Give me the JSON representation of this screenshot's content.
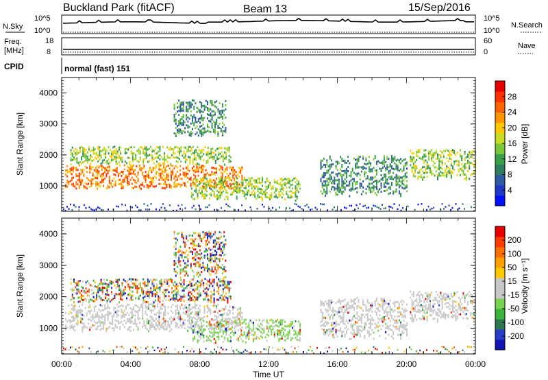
{
  "header": {
    "site": "Buckland Park (fitACF)",
    "beam": "Beam 13",
    "date": "15/Sep/2016"
  },
  "status_panels": {
    "nsky_label": "N.Sky",
    "nsky_ticks": [
      "10^5",
      "10^0"
    ],
    "nsearch_label": "N.Search",
    "nsearch_ticks": [
      "10^5",
      "10^0"
    ],
    "freq_label_line1": "Freq.",
    "freq_label_line2": "[MHz]",
    "freq_ticks": [
      "18",
      "8"
    ],
    "nave_label": "Nave",
    "nave_ticks": [
      "60",
      "0"
    ],
    "cpid_label": "CPID",
    "cpid_text": "normal (fast) 151"
  },
  "chart_data": [
    {
      "type": "heatmap",
      "name": "power",
      "ylabel": "Slant Range [km]",
      "ylim": [
        180,
        4500
      ],
      "yticks": [
        1000,
        2000,
        3000,
        4000
      ],
      "xlim": [
        0,
        24
      ],
      "colorbar": {
        "label": "Power [dB]",
        "ticks": [
          "28",
          "24",
          "20",
          "16",
          "12",
          "8",
          "4"
        ],
        "colors": [
          "#0010ff",
          "#2038c8",
          "#2d5aa0",
          "#2e7d5e",
          "#3aa04a",
          "#78c83a",
          "#c8dc28",
          "#ffc800",
          "#ff9600",
          "#ff6400",
          "#ff3200",
          "#e60000"
        ]
      },
      "echo_regions": [
        {
          "t0": 0.2,
          "t1": 10.5,
          "r0": 900,
          "r1": 1700,
          "level": "high"
        },
        {
          "t0": 0.5,
          "t1": 9.8,
          "r0": 1700,
          "r1": 2300,
          "level": "mid"
        },
        {
          "t0": 7.5,
          "t1": 13.8,
          "r0": 550,
          "r1": 1300,
          "level": "mid"
        },
        {
          "t0": 6.5,
          "t1": 9.5,
          "r0": 2600,
          "r1": 3800,
          "level": "low"
        },
        {
          "t0": 15.0,
          "t1": 20.0,
          "r0": 650,
          "r1": 2000,
          "level": "low"
        },
        {
          "t0": 20.2,
          "t1": 24.0,
          "r0": 1200,
          "r1": 2200,
          "level": "mid"
        }
      ]
    },
    {
      "type": "heatmap",
      "name": "velocity",
      "xlabel": "Time UT",
      "ylabel": "Slant Range [km]",
      "ylim": [
        180,
        4500
      ],
      "yticks": [
        1000,
        2000,
        3000,
        4000
      ],
      "xlim": [
        0,
        24
      ],
      "xticks": [
        "00:00",
        "04:00",
        "08:00",
        "12:00",
        "16:00",
        "20:00",
        "00:00"
      ],
      "colorbar": {
        "label": "Velocity [m s⁻¹]",
        "ticks": [
          "200",
          "100",
          "50",
          "15",
          "-15",
          "-50",
          "-100",
          "-200"
        ],
        "colors": [
          "#1414b4",
          "#283cc8",
          "#2d7850",
          "#3cb43c",
          "#78d250",
          "#c8c8c8",
          "#c8c8c8",
          "#ffc800",
          "#ffa000",
          "#ff6e00",
          "#ff3c00",
          "#e60000"
        ]
      },
      "echo_regions": [
        {
          "t0": 0.2,
          "t1": 10.5,
          "r0": 900,
          "r1": 1800,
          "level": "ground"
        },
        {
          "t0": 0.5,
          "t1": 9.8,
          "r0": 1800,
          "r1": 2600,
          "level": "ionos"
        },
        {
          "t0": 7.5,
          "t1": 13.8,
          "r0": 550,
          "r1": 1300,
          "level": "mixed"
        },
        {
          "t0": 6.5,
          "t1": 9.5,
          "r0": 2600,
          "r1": 4100,
          "level": "ionos"
        },
        {
          "t0": 15.0,
          "t1": 20.0,
          "r0": 650,
          "r1": 2000,
          "level": "ground"
        },
        {
          "t0": 20.2,
          "t1": 24.0,
          "r0": 1200,
          "r1": 2200,
          "level": "ground"
        }
      ]
    }
  ]
}
